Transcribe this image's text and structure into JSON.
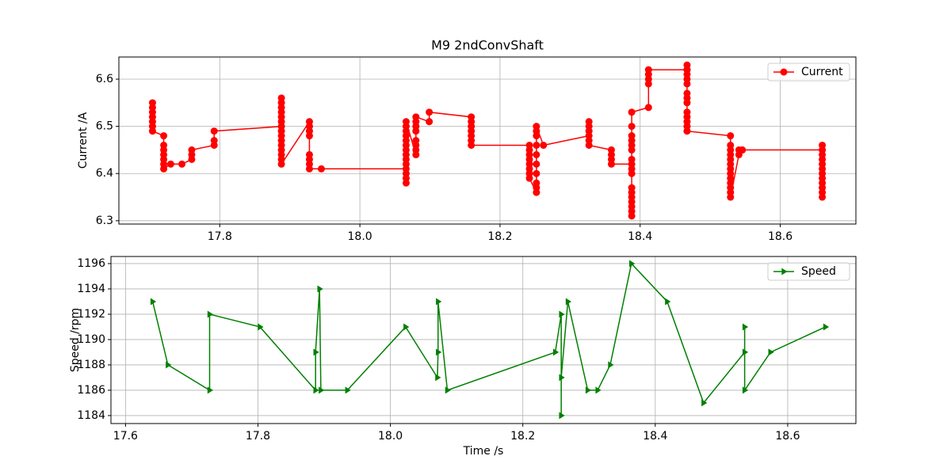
{
  "chart_data": [
    {
      "type": "line",
      "title": "M9 2ndConvShaft",
      "y_label": "Current /A",
      "grid": true,
      "legend": "upper right",
      "marker": "circle",
      "xlim": [
        17.656,
        18.708
      ],
      "ylim": [
        6.293,
        6.647
      ],
      "xticks": [
        17.8,
        {
          "value": 18,
          "label": "18.0"
        },
        18.2,
        18.4,
        18.6
      ],
      "yticks": [
        6.3,
        6.4,
        6.5,
        6.6
      ],
      "x": [
        17.704,
        17.704,
        17.704,
        17.704,
        17.704,
        17.704,
        17.704,
        17.72,
        17.72,
        17.72,
        17.72,
        17.72,
        17.72,
        17.72,
        17.73,
        17.746,
        17.76,
        17.76,
        17.76,
        17.792,
        17.792,
        17.792,
        17.888,
        17.888,
        17.888,
        17.888,
        17.888,
        17.888,
        17.888,
        17.888,
        17.888,
        17.888,
        17.888,
        17.888,
        17.888,
        17.888,
        17.888,
        17.928,
        17.928,
        17.928,
        17.928,
        17.928,
        17.928,
        17.928,
        17.928,
        17.945,
        18.066,
        18.066,
        18.066,
        18.066,
        18.066,
        18.066,
        18.066,
        18.066,
        18.066,
        18.066,
        18.066,
        18.066,
        18.066,
        18.066,
        18.08,
        18.08,
        18.08,
        18.08,
        18.08,
        18.08,
        18.08,
        18.08,
        18.099,
        18.099,
        18.159,
        18.159,
        18.159,
        18.159,
        18.159,
        18.159,
        18.159,
        18.242,
        18.242,
        18.242,
        18.242,
        18.242,
        18.242,
        18.242,
        18.242,
        18.252,
        18.252,
        18.252,
        18.252,
        18.252,
        18.252,
        18.252,
        18.252,
        18.252,
        18.252,
        18.262,
        18.327,
        18.327,
        18.327,
        18.327,
        18.327,
        18.327,
        18.359,
        18.359,
        18.359,
        18.359,
        18.388,
        18.388,
        18.388,
        18.388,
        18.388,
        18.388,
        18.388,
        18.388,
        18.388,
        18.388,
        18.388,
        18.388,
        18.388,
        18.388,
        18.388,
        18.388,
        18.388,
        18.412,
        18.412,
        18.412,
        18.412,
        18.412,
        18.467,
        18.467,
        18.467,
        18.467,
        18.467,
        18.467,
        18.467,
        18.467,
        18.467,
        18.467,
        18.467,
        18.467,
        18.467,
        18.467,
        18.529,
        18.529,
        18.529,
        18.529,
        18.529,
        18.529,
        18.529,
        18.529,
        18.529,
        18.529,
        18.529,
        18.529,
        18.529,
        18.541,
        18.541,
        18.546,
        18.66,
        18.66,
        18.66,
        18.66,
        18.66,
        18.66,
        18.66,
        18.66,
        18.66,
        18.66,
        18.66,
        18.66,
        18.66
      ],
      "series": [
        {
          "name": "Current",
          "color": "#ff0000",
          "values": [
            6.55,
            6.54,
            6.53,
            6.52,
            6.51,
            6.5,
            6.49,
            6.48,
            6.46,
            6.45,
            6.44,
            6.43,
            6.42,
            6.41,
            6.42,
            6.42,
            6.43,
            6.44,
            6.45,
            6.46,
            6.47,
            6.49,
            6.5,
            6.56,
            6.55,
            6.54,
            6.53,
            6.52,
            6.51,
            6.49,
            6.48,
            6.47,
            6.46,
            6.45,
            6.44,
            6.43,
            6.42,
            6.51,
            6.5,
            6.49,
            6.48,
            6.44,
            6.43,
            6.42,
            6.41,
            6.41,
            6.41,
            6.38,
            6.39,
            6.4,
            6.42,
            6.43,
            6.44,
            6.45,
            6.46,
            6.47,
            6.48,
            6.49,
            6.5,
            6.51,
            6.44,
            6.45,
            6.46,
            6.47,
            6.49,
            6.5,
            6.51,
            6.52,
            6.51,
            6.53,
            6.52,
            6.51,
            6.5,
            6.49,
            6.48,
            6.47,
            6.46,
            6.46,
            6.45,
            6.44,
            6.43,
            6.42,
            6.41,
            6.4,
            6.39,
            6.36,
            6.37,
            6.38,
            6.4,
            6.42,
            6.44,
            6.46,
            6.48,
            6.49,
            6.5,
            6.46,
            6.48,
            6.51,
            6.5,
            6.49,
            6.47,
            6.46,
            6.45,
            6.44,
            6.43,
            6.42,
            6.42,
            6.31,
            6.32,
            6.33,
            6.34,
            6.35,
            6.36,
            6.37,
            6.4,
            6.41,
            6.43,
            6.45,
            6.46,
            6.47,
            6.48,
            6.5,
            6.53,
            6.54,
            6.59,
            6.6,
            6.61,
            6.62,
            6.62,
            6.63,
            6.62,
            6.61,
            6.6,
            6.59,
            6.57,
            6.56,
            6.55,
            6.53,
            6.52,
            6.51,
            6.5,
            6.49,
            6.48,
            6.46,
            6.45,
            6.44,
            6.43,
            6.42,
            6.41,
            6.4,
            6.39,
            6.38,
            6.37,
            6.36,
            6.35,
            6.44,
            6.45,
            6.45,
            6.45,
            6.46,
            6.45,
            6.44,
            6.43,
            6.42,
            6.41,
            6.4,
            6.39,
            6.38,
            6.37,
            6.36,
            6.35
          ]
        }
      ]
    },
    {
      "type": "line",
      "x_label": "Time /s",
      "y_label": "Speed /rpm",
      "grid": true,
      "legend": "upper right",
      "marker": "triangle-right",
      "xlim": [
        17.578,
        18.703
      ],
      "ylim": [
        1183.37,
        1196.56
      ],
      "xticks": [
        17.6,
        17.8,
        {
          "value": 18,
          "label": "18.0"
        },
        18.2,
        18.4,
        18.6
      ],
      "yticks": [
        1184,
        1186,
        1188,
        1190,
        1192,
        1194,
        1196
      ],
      "x": [
        17.641,
        17.664,
        17.727,
        17.727,
        17.803,
        17.887,
        17.887,
        17.893,
        17.895,
        17.935,
        18.023,
        18.071,
        18.072,
        18.072,
        18.086,
        18.249,
        18.258,
        18.258,
        18.258,
        18.268,
        18.298,
        18.313,
        18.332,
        18.364,
        18.418,
        18.473,
        18.535,
        18.535,
        18.535,
        18.574,
        18.657
      ],
      "series": [
        {
          "name": "Speed",
          "color": "#008000",
          "values": [
            1193,
            1188,
            1186,
            1192,
            1191,
            1186,
            1189,
            1194,
            1186,
            1186,
            1191,
            1187,
            1189,
            1193,
            1186,
            1189,
            1192,
            1184,
            1187,
            1193,
            1186,
            1186,
            1188,
            1196,
            1193,
            1185,
            1189,
            1191,
            1186,
            1189,
            1191
          ]
        }
      ]
    }
  ]
}
